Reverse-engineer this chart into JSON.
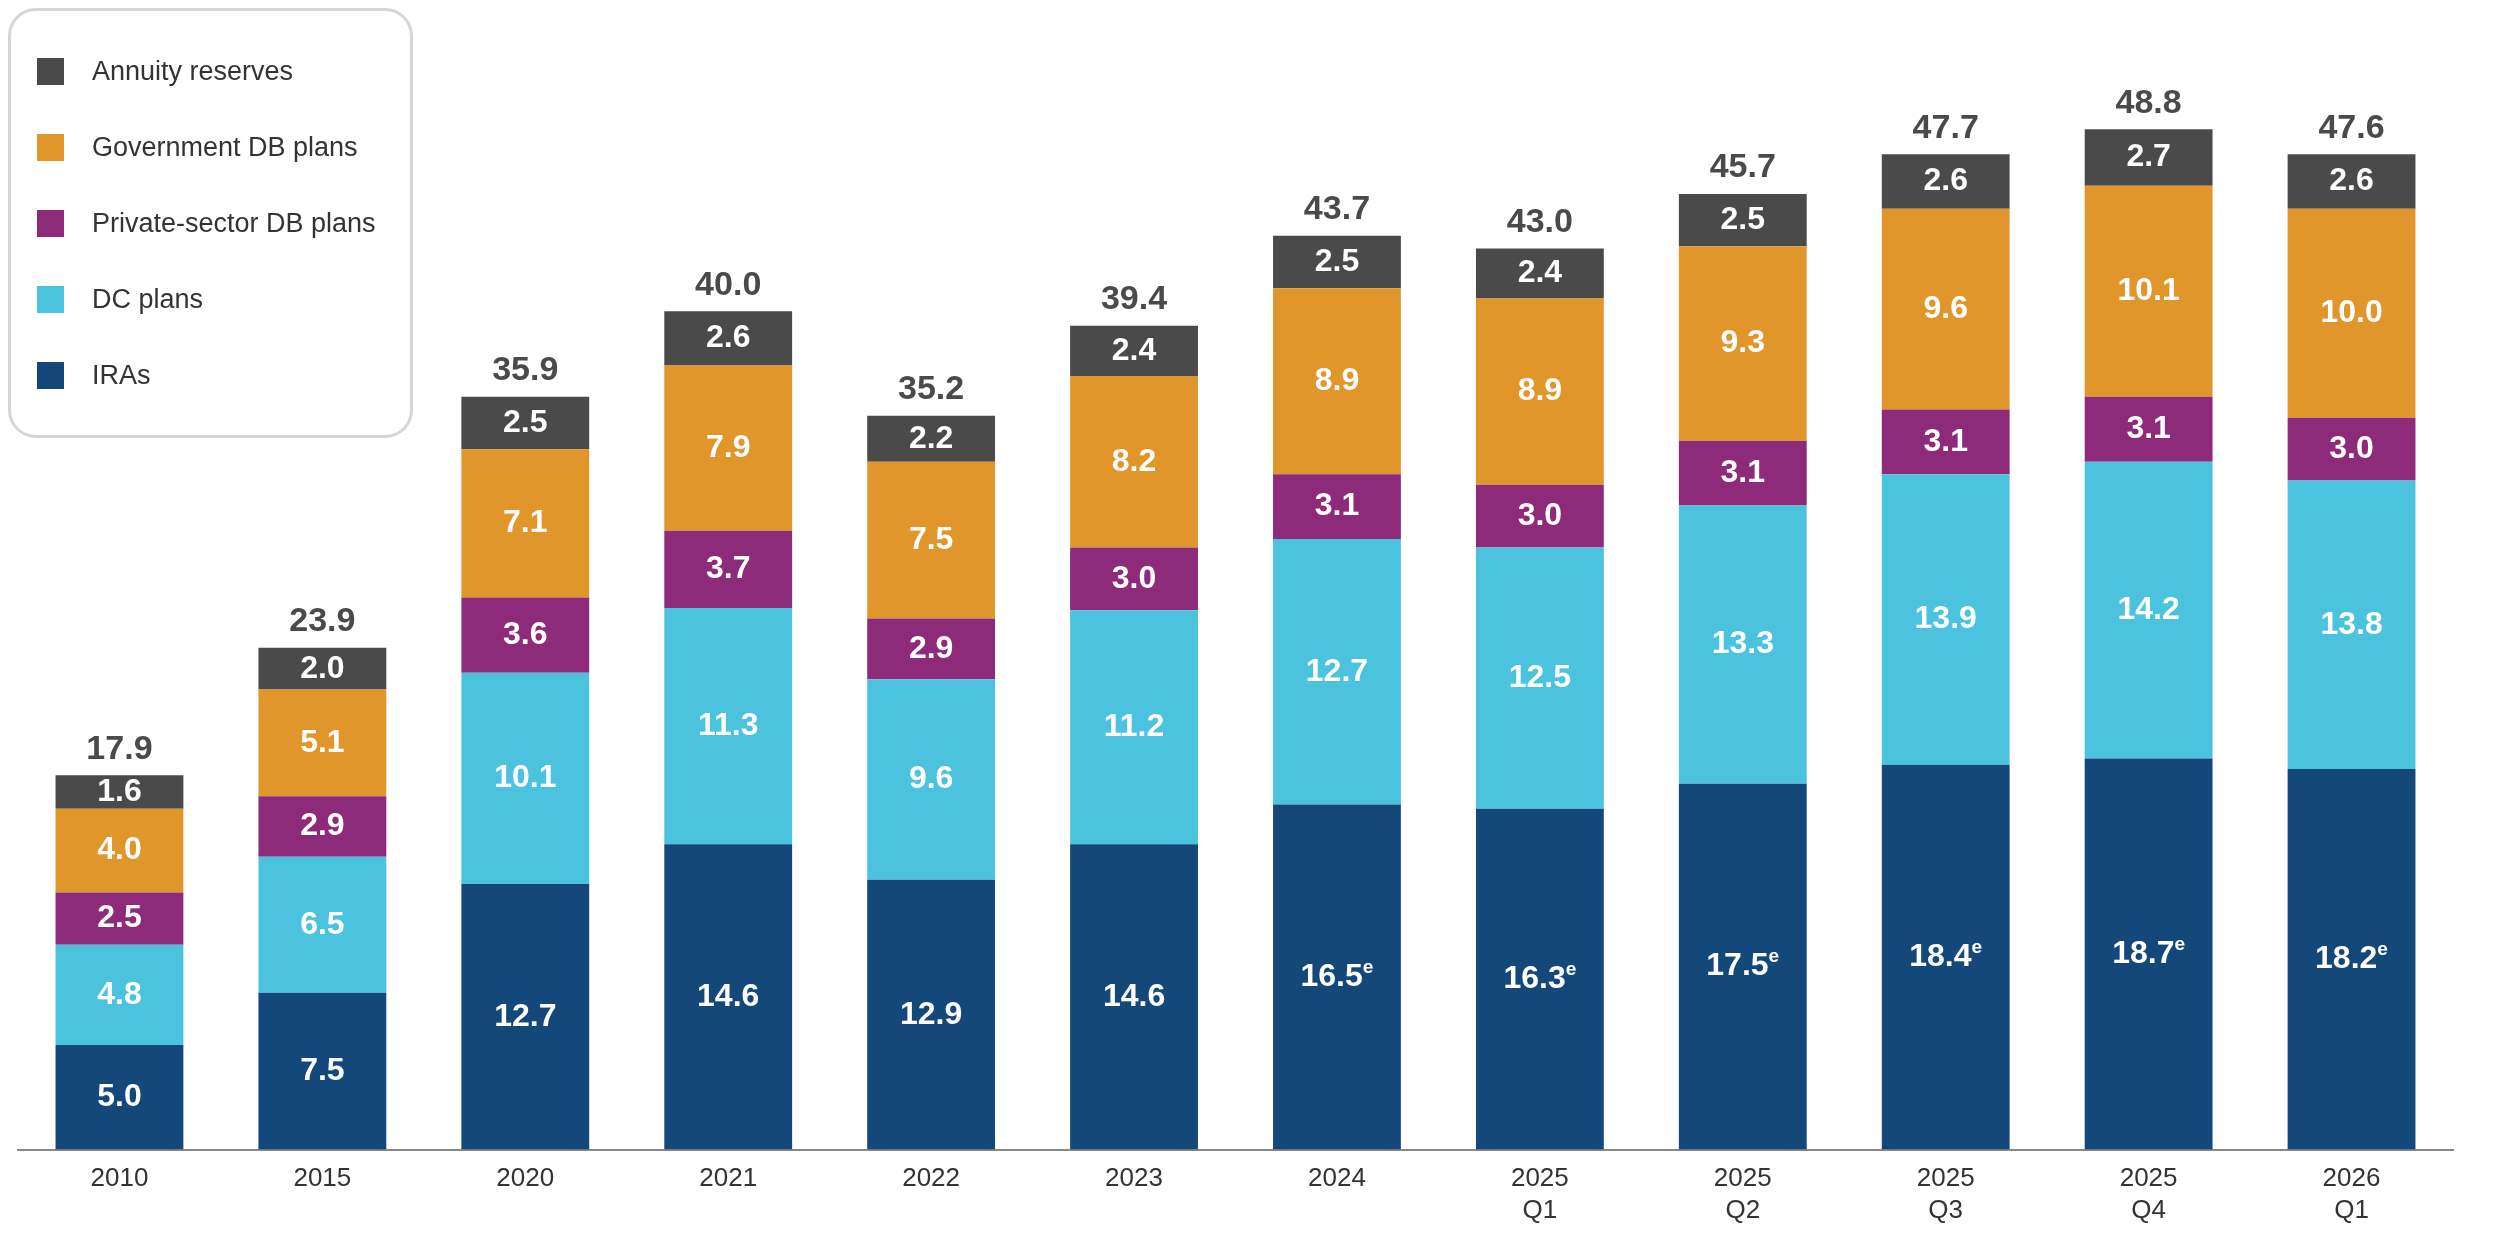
{
  "chart_data": {
    "type": "bar",
    "stacked": true,
    "tick_labels": "x",
    "legend": "top left",
    "grid": false,
    "categories": [
      "2010",
      "2015",
      "2020",
      "2021",
      "2022",
      "2023",
      "2024",
      "2025 Q1",
      "2025 Q2",
      "2025 Q3",
      "2025 Q4",
      "2026 Q1"
    ],
    "series": [
      {
        "name": "IRAs",
        "color": "#14477a",
        "values": [
          5.0,
          7.5,
          12.7,
          14.6,
          12.9,
          14.6,
          16.5,
          16.3,
          17.5,
          18.4,
          18.7,
          18.2
        ],
        "value_labels": [
          "5.0",
          "7.5",
          "12.7",
          "14.6",
          "12.9",
          "14.6",
          "16.5$^{e}$",
          "16.3$^{e}$",
          "17.5$^{e}$",
          "18.4$^{e}$",
          "18.7$^{e}$",
          "18.2$^{e}$"
        ]
      },
      {
        "name": "DC plans",
        "color": "#4bc3de",
        "values": [
          4.8,
          6.5,
          10.1,
          11.3,
          9.6,
          11.2,
          12.7,
          12.5,
          13.3,
          13.9,
          14.2,
          13.8
        ],
        "value_labels": [
          "4.8",
          "6.5",
          "10.1",
          "11.3",
          "9.6",
          "11.2",
          "12.7",
          "12.5",
          "13.3",
          "13.9",
          "14.2",
          "13.8"
        ]
      },
      {
        "name": "Private-sector DB plans",
        "color": "#8e2a7a",
        "values": [
          2.5,
          2.9,
          3.6,
          3.7,
          2.9,
          3.0,
          3.1,
          3.0,
          3.1,
          3.1,
          3.1,
          3.0
        ],
        "value_labels": [
          "2.5",
          "2.9",
          "3.6",
          "3.7",
          "2.9",
          "3.0",
          "3.1",
          "3.0",
          "3.1",
          "3.1",
          "3.1",
          "3.0"
        ]
      },
      {
        "name": "Government DB plans",
        "color": "#e0962a",
        "values": [
          4.0,
          5.1,
          7.1,
          7.9,
          7.5,
          8.2,
          8.9,
          8.9,
          9.3,
          9.6,
          10.1,
          10.0
        ],
        "value_labels": [
          "4.0",
          "5.1",
          "7.1",
          "7.9",
          "7.5",
          "8.2",
          "8.9",
          "8.9",
          "9.3",
          "9.6",
          "10.1",
          "10.0"
        ]
      },
      {
        "name": "Annuity reserves",
        "color": "#4a4a4a",
        "values": [
          1.6,
          2.0,
          2.5,
          2.6,
          2.2,
          2.4,
          2.5,
          2.4,
          2.5,
          2.6,
          2.7,
          2.6
        ],
        "value_labels": [
          "1.6",
          "2.0",
          "2.5",
          "2.6",
          "2.2",
          "2.4",
          "2.5",
          "2.4",
          "2.5",
          "2.6",
          "2.7",
          "2.6"
        ]
      }
    ],
    "totals": [
      "17.9",
      "23.9",
      "35.9",
      "40.0",
      "35.2",
      "39.4",
      "43.7",
      "43.0",
      "45.7",
      "47.7",
      "48.8",
      "47.6"
    ]
  }
}
